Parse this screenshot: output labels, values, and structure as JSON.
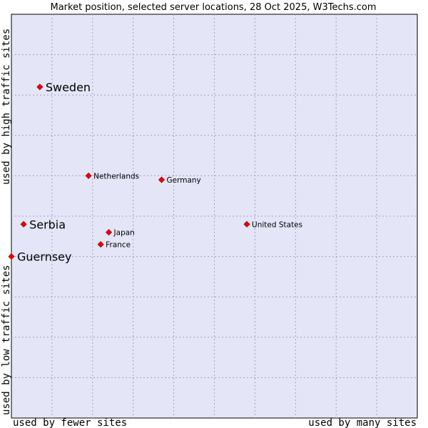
{
  "chart_data": {
    "type": "scatter",
    "title": "Market position, selected server locations, 28 Oct 2025, W3Techs.com",
    "xlabel_low": "used by fewer sites",
    "xlabel_high": "used by many sites",
    "ylabel_low": "used by low traffic sites",
    "ylabel_high": "used by high traffic sites",
    "xlim": [
      0,
      10
    ],
    "ylim": [
      0,
      10
    ],
    "grid": true,
    "points": [
      {
        "name": "Sweden",
        "x": 0.7,
        "y": 8.2,
        "highlight": true
      },
      {
        "name": "Netherlands",
        "x": 1.9,
        "y": 6.0,
        "highlight": false
      },
      {
        "name": "Germany",
        "x": 3.7,
        "y": 5.9,
        "highlight": false
      },
      {
        "name": "Serbia",
        "x": 0.3,
        "y": 4.8,
        "highlight": true
      },
      {
        "name": "United States",
        "x": 5.8,
        "y": 4.8,
        "highlight": false
      },
      {
        "name": "Japan",
        "x": 2.4,
        "y": 4.6,
        "highlight": false
      },
      {
        "name": "France",
        "x": 2.2,
        "y": 4.3,
        "highlight": false
      },
      {
        "name": "Guernsey",
        "x": 0.0,
        "y": 4.0,
        "highlight": true
      }
    ]
  },
  "colors": {
    "plot_bg": "#e4e6f8",
    "marker": "#ee0000",
    "grid": "#a0a0c0"
  }
}
